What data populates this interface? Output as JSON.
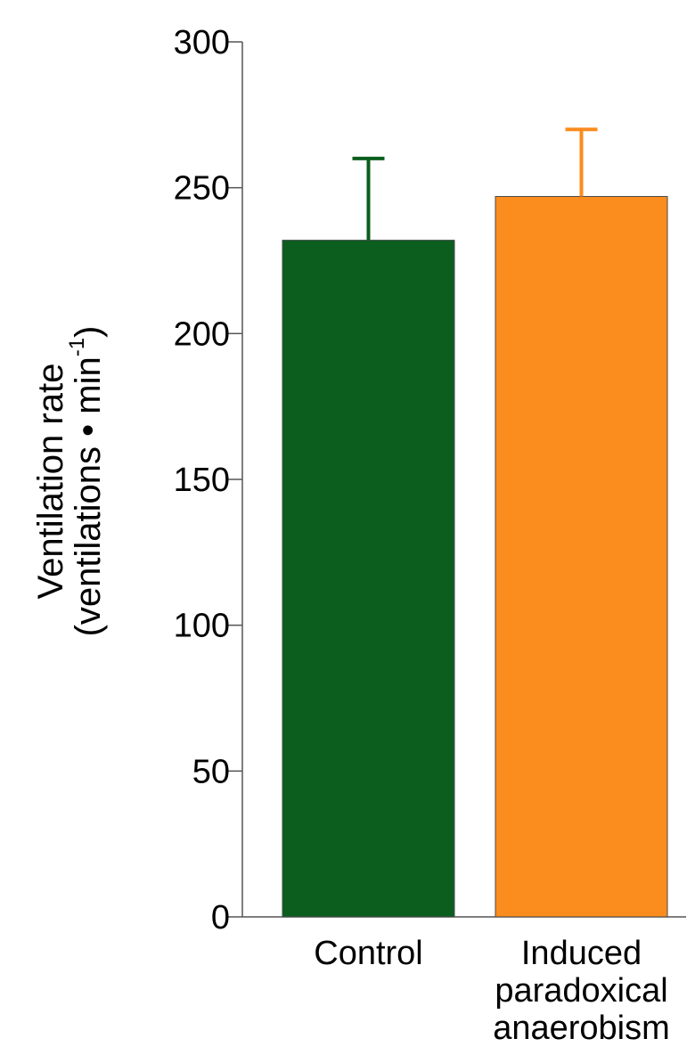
{
  "chart_data": {
    "type": "bar",
    "title": "",
    "categories": [
      {
        "lines": [
          "Control"
        ]
      },
      {
        "lines": [
          "Induced",
          "paradoxical",
          "anaerobism"
        ]
      }
    ],
    "values": [
      232,
      247
    ],
    "errors": [
      28,
      23
    ],
    "colors": [
      "#0b5e1e",
      "#fb8c1e"
    ],
    "ylabel_line1": "Ventilation rate",
    "ylabel_line2": "(ventilations • min",
    "ylabel_sup": "-1",
    "ylabel_close": ")",
    "ylim": [
      0,
      300
    ],
    "yticks": [
      0,
      50,
      100,
      150,
      200,
      250,
      300
    ],
    "grid": false,
    "legend": "none"
  }
}
